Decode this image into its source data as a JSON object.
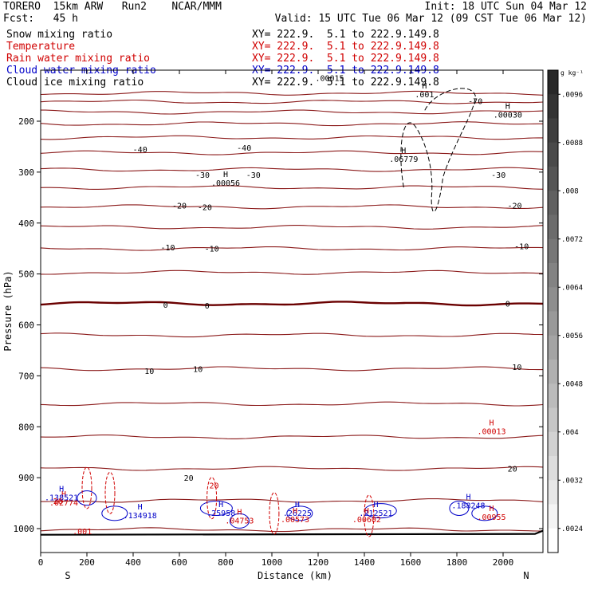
{
  "header": {
    "model": "TORERO  15km ARW   Run2    NCAR/MMM",
    "init": "Init: 18 UTC Sun 04 Mar 12",
    "fcst": "Fcst:   45 h",
    "valid": "Valid: 15 UTC Tue 06 Mar 12 (09 CST Tue 06 Mar 12)"
  },
  "legend": [
    {
      "label": "Snow mixing ratio",
      "xy": "XY= 222.9.  5.1 to 222.9.149.8",
      "color": "#000000"
    },
    {
      "label": "Temperature",
      "xy": "XY= 222.9.  5.1 to 222.9.149.8",
      "color": "#d00000"
    },
    {
      "label": "Rain water mixing ratio",
      "xy": "XY= 222.9.  5.1 to 222.9.149.8",
      "color": "#d00000"
    },
    {
      "label": "Cloud water mixing ratio",
      "xy": "XY= 222.9.  5.1 to 222.9.149.8",
      "color": "#0000c8"
    },
    {
      "label": "Cloud ice mixing ratio",
      "xy": "XY= 222.9.  5.1 to 222.9.149.8",
      "color": "#000000"
    }
  ],
  "chart_data": {
    "type": "cross-section",
    "xlabel": "Distance (km)",
    "ylabel": "Pressure (hPa)",
    "xlim": [
      0,
      2180
    ],
    "ylim": [
      1050,
      110
    ],
    "x_ticks": [
      0,
      200,
      400,
      600,
      800,
      1000,
      1200,
      1400,
      1600,
      1800,
      2000
    ],
    "y_ticks": [
      200,
      300,
      400,
      500,
      600,
      700,
      800,
      900,
      1000
    ],
    "left_end": "S",
    "right_end": "N",
    "colorbar": {
      "unit": "g kg⁻¹",
      "ticks": [
        ".0096",
        ".0088",
        ".008",
        ".0072",
        ".0064",
        ".0056",
        ".0048",
        ".004",
        ".0032",
        ".0024"
      ],
      "range": [
        0.002,
        0.01
      ]
    },
    "temperature_contours": [
      {
        "p": 145
      },
      {
        "p": 162
      },
      {
        "p": 182
      },
      {
        "p": 205
      },
      {
        "p": 232
      },
      {
        "p": 262
      },
      {
        "p": 295
      },
      {
        "p": 330
      },
      {
        "p": 368
      },
      {
        "p": 408
      },
      {
        "p": 450
      },
      {
        "p": 497
      },
      {
        "p": 558,
        "bold": true
      },
      {
        "p": 620
      },
      {
        "p": 686
      },
      {
        "p": 755
      },
      {
        "p": 820
      },
      {
        "p": 882
      },
      {
        "p": 945
      },
      {
        "p": 1002
      }
    ],
    "temperature_labels": [
      {
        "x": 430,
        "p": 255,
        "text": "-40"
      },
      {
        "x": 880,
        "p": 252,
        "text": "-40"
      },
      {
        "x": 1880,
        "p": 160,
        "text": "-70"
      },
      {
        "x": 700,
        "p": 305,
        "text": "-30"
      },
      {
        "x": 920,
        "p": 305,
        "text": "-30"
      },
      {
        "x": 1980,
        "p": 305,
        "text": "-30"
      },
      {
        "x": 600,
        "p": 365,
        "text": "-20"
      },
      {
        "x": 710,
        "p": 368,
        "text": "-20"
      },
      {
        "x": 2050,
        "p": 365,
        "text": "-20"
      },
      {
        "x": 550,
        "p": 447,
        "text": "-10"
      },
      {
        "x": 740,
        "p": 450,
        "text": "-10"
      },
      {
        "x": 2080,
        "p": 445,
        "text": "-10"
      },
      {
        "x": 540,
        "p": 560,
        "text": "0"
      },
      {
        "x": 720,
        "p": 562,
        "text": "0"
      },
      {
        "x": 2020,
        "p": 558,
        "text": "0"
      },
      {
        "x": 470,
        "p": 690,
        "text": "10"
      },
      {
        "x": 680,
        "p": 686,
        "text": "10"
      },
      {
        "x": 2060,
        "p": 682,
        "text": "10"
      },
      {
        "x": 640,
        "p": 900,
        "text": "20"
      },
      {
        "x": 2040,
        "p": 882,
        "text": "20"
      }
    ],
    "maxima": [
      {
        "x": 2020,
        "p": 188,
        "text": ".00030",
        "color": "#000000"
      },
      {
        "x": 800,
        "p": 322,
        "text": ".00056",
        "color": "#000000"
      },
      {
        "x": 1570,
        "p": 275,
        "text": ".06779",
        "color": "#000000"
      },
      {
        "x": 1660,
        "p": 148,
        "text": ".001",
        "color": "#000000"
      },
      {
        "x": 1950,
        "p": 810,
        "text": ".00013",
        "color": "#d00000"
      },
      {
        "x": 100,
        "p": 950,
        "text": ".02774",
        "color": "#d00000"
      },
      {
        "x": 90,
        "p": 940,
        "text": ".138521",
        "color": "#0000c8"
      },
      {
        "x": 430,
        "p": 975,
        "text": ".134918",
        "color": "#0000c8"
      },
      {
        "x": 780,
        "p": 970,
        "text": ".25958",
        "color": "#0000c8"
      },
      {
        "x": 860,
        "p": 985,
        "text": ".04753",
        "color": "#d00000"
      },
      {
        "x": 1110,
        "p": 970,
        "text": ".26225",
        "color": "#0000c8"
      },
      {
        "x": 1100,
        "p": 983,
        "text": ".00573",
        "color": "#d00000"
      },
      {
        "x": 1450,
        "p": 970,
        "text": ".212521",
        "color": "#0000c8"
      },
      {
        "x": 1410,
        "p": 983,
        "text": ".00602",
        "color": "#d00000"
      },
      {
        "x": 1850,
        "p": 955,
        "text": ".188248",
        "color": "#0000c8"
      },
      {
        "x": 1950,
        "p": 978,
        "text": ".00955",
        "color": "#d00000"
      }
    ],
    "contour_labels": [
      {
        "x": 75,
        "p": 945,
        "text": "20",
        "color": "#d00000"
      },
      {
        "x": 750,
        "p": 915,
        "text": "20",
        "color": "#d00000"
      },
      {
        "x": 180,
        "p": 1005,
        "text": ".001",
        "color": "#d00000"
      },
      {
        "x": 1250,
        "p": 115,
        "text": ".00015",
        "color": "#000000"
      }
    ]
  }
}
